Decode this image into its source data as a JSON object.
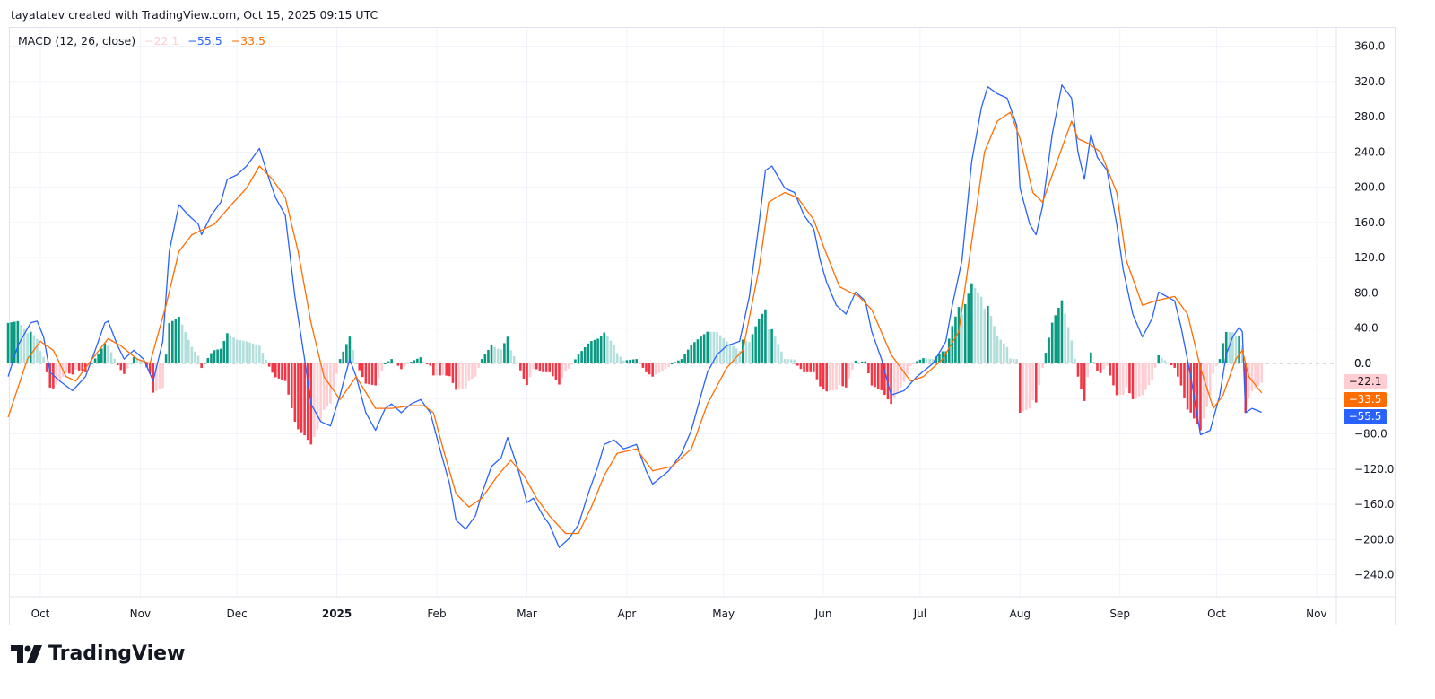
{
  "credit": "tayatatev created with TradingView.com, Oct 15, 2025 09:15 UTC",
  "legend": {
    "indicator": "MACD (12, 26, close)",
    "histogram_value": "−22.1",
    "macd_value": "−55.5",
    "signal_value": "−33.5"
  },
  "price_tags": {
    "histogram": "−22.1",
    "signal": "−33.5",
    "macd": "−55.5",
    "zero": "0.0"
  },
  "logo": "TradingView",
  "colors": {
    "macd": "#2962ff",
    "signal": "#ff6d00",
    "hist_up_strong": "#089981",
    "hist_up_weak": "#b2dfdb",
    "hist_down_strong": "#f23645",
    "hist_down_weak": "#ffcdd2"
  },
  "chart_data": {
    "type": "line",
    "title": "MACD (12, 26, close)",
    "ylim": [
      -260,
      380
    ],
    "yticks": [
      "360.0",
      "320.0",
      "280.0",
      "240.0",
      "200.0",
      "160.0",
      "120.0",
      "80.0",
      "40.0",
      "0.0",
      "-40.0",
      "-80.0",
      "-120.0",
      "-160.0",
      "-200.0",
      "-240.0"
    ],
    "xticks": [
      {
        "label": "Oct",
        "date": "2024-10-01"
      },
      {
        "label": "Nov",
        "date": "2024-11-01"
      },
      {
        "label": "Dec",
        "date": "2024-12-01"
      },
      {
        "label": "2025",
        "date": "2025-01-01",
        "bold": true
      },
      {
        "label": "Feb",
        "date": "2025-02-01"
      },
      {
        "label": "Mar",
        "date": "2025-03-01"
      },
      {
        "label": "Apr",
        "date": "2025-04-01"
      },
      {
        "label": "May",
        "date": "2025-05-01"
      },
      {
        "label": "Jun",
        "date": "2025-06-01"
      },
      {
        "label": "Jul",
        "date": "2025-07-01"
      },
      {
        "label": "Aug",
        "date": "2025-08-01"
      },
      {
        "label": "Sep",
        "date": "2025-09-01"
      },
      {
        "label": "Oct",
        "date": "2025-10-01"
      },
      {
        "label": "Nov",
        "date": "2025-11-01"
      }
    ],
    "grid": true,
    "series": [
      {
        "key": "macd",
        "points": [
          [
            "2024-09-21",
            -15
          ],
          [
            "2024-09-24",
            20
          ],
          [
            "2024-09-28",
            46
          ],
          [
            "2024-09-30",
            48
          ],
          [
            "2024-10-02",
            30
          ],
          [
            "2024-10-04",
            -10
          ],
          [
            "2024-10-07",
            -20
          ],
          [
            "2024-10-11",
            -31
          ],
          [
            "2024-10-15",
            -15
          ],
          [
            "2024-10-18",
            15
          ],
          [
            "2024-10-21",
            46
          ],
          [
            "2024-10-22",
            48
          ],
          [
            "2024-10-25",
            20
          ],
          [
            "2024-10-27",
            5
          ],
          [
            "2024-10-30",
            15
          ],
          [
            "2024-11-02",
            5
          ],
          [
            "2024-11-05",
            -20
          ],
          [
            "2024-11-08",
            25
          ],
          [
            "2024-11-10",
            127
          ],
          [
            "2024-11-13",
            180
          ],
          [
            "2024-11-16",
            168
          ],
          [
            "2024-11-19",
            158
          ],
          [
            "2024-11-20",
            146
          ],
          [
            "2024-11-23",
            168
          ],
          [
            "2024-11-26",
            183
          ],
          [
            "2024-11-28",
            209
          ],
          [
            "2024-12-01",
            214
          ],
          [
            "2024-12-04",
            224
          ],
          [
            "2024-12-06",
            234
          ],
          [
            "2024-12-08",
            244
          ],
          [
            "2024-12-11",
            209
          ],
          [
            "2024-12-13",
            188
          ],
          [
            "2024-12-16",
            168
          ],
          [
            "2024-12-19",
            76
          ],
          [
            "2024-12-22",
            5
          ],
          [
            "2024-12-24",
            -46
          ],
          [
            "2024-12-27",
            -66
          ],
          [
            "2024-12-30",
            -71
          ],
          [
            "2025-01-02",
            -36
          ],
          [
            "2025-01-05",
            5
          ],
          [
            "2025-01-07",
            -15
          ],
          [
            "2025-01-10",
            -56
          ],
          [
            "2025-01-13",
            -76
          ],
          [
            "2025-01-16",
            -51
          ],
          [
            "2025-01-18",
            -46
          ],
          [
            "2025-01-21",
            -56
          ],
          [
            "2025-01-24",
            -46
          ],
          [
            "2025-01-27",
            -41
          ],
          [
            "2025-01-30",
            -56
          ],
          [
            "2025-02-02",
            -97
          ],
          [
            "2025-02-05",
            -137
          ],
          [
            "2025-02-07",
            -178
          ],
          [
            "2025-02-10",
            -188
          ],
          [
            "2025-02-13",
            -173
          ],
          [
            "2025-02-15",
            -148
          ],
          [
            "2025-02-18",
            -117
          ],
          [
            "2025-02-21",
            -107
          ],
          [
            "2025-02-23",
            -84
          ],
          [
            "2025-02-26",
            -117
          ],
          [
            "2025-03-01",
            -158
          ],
          [
            "2025-03-03",
            -153
          ],
          [
            "2025-03-06",
            -173
          ],
          [
            "2025-03-08",
            -183
          ],
          [
            "2025-03-11",
            -209
          ],
          [
            "2025-03-14",
            -199
          ],
          [
            "2025-03-17",
            -183
          ],
          [
            "2025-03-20",
            -148
          ],
          [
            "2025-03-23",
            -117
          ],
          [
            "2025-03-25",
            -92
          ],
          [
            "2025-03-28",
            -87
          ],
          [
            "2025-03-31",
            -97
          ],
          [
            "2025-04-04",
            -92
          ],
          [
            "2025-04-07",
            -122
          ],
          [
            "2025-04-09",
            -137
          ],
          [
            "2025-04-14",
            -122
          ],
          [
            "2025-04-18",
            -102
          ],
          [
            "2025-04-21",
            -76
          ],
          [
            "2025-04-24",
            -36
          ],
          [
            "2025-04-26",
            -10
          ],
          [
            "2025-04-29",
            10
          ],
          [
            "2025-05-02",
            20
          ],
          [
            "2025-05-06",
            25
          ],
          [
            "2025-05-09",
            76
          ],
          [
            "2025-05-12",
            158
          ],
          [
            "2025-05-14",
            219
          ],
          [
            "2025-05-16",
            224
          ],
          [
            "2025-05-20",
            199
          ],
          [
            "2025-05-23",
            194
          ],
          [
            "2025-05-26",
            168
          ],
          [
            "2025-05-29",
            153
          ],
          [
            "2025-05-31",
            117
          ],
          [
            "2025-06-02",
            92
          ],
          [
            "2025-06-05",
            66
          ],
          [
            "2025-06-08",
            56
          ],
          [
            "2025-06-11",
            81
          ],
          [
            "2025-06-14",
            71
          ],
          [
            "2025-06-16",
            36
          ],
          [
            "2025-06-19",
            5
          ],
          [
            "2025-06-22",
            -36
          ],
          [
            "2025-06-26",
            -31
          ],
          [
            "2025-06-30",
            -15
          ],
          [
            "2025-07-05",
            0
          ],
          [
            "2025-07-09",
            25
          ],
          [
            "2025-07-11",
            66
          ],
          [
            "2025-07-14",
            117
          ],
          [
            "2025-07-17",
            229
          ],
          [
            "2025-07-20",
            290
          ],
          [
            "2025-07-22",
            314
          ],
          [
            "2025-07-25",
            306
          ],
          [
            "2025-07-28",
            301
          ],
          [
            "2025-07-31",
            270
          ],
          [
            "2025-08-01",
            199
          ],
          [
            "2025-08-04",
            158
          ],
          [
            "2025-08-06",
            146
          ],
          [
            "2025-08-08",
            178
          ],
          [
            "2025-08-11",
            260
          ],
          [
            "2025-08-14",
            316
          ],
          [
            "2025-08-17",
            301
          ],
          [
            "2025-08-19",
            240
          ],
          [
            "2025-08-21",
            209
          ],
          [
            "2025-08-23",
            260
          ],
          [
            "2025-08-25",
            234
          ],
          [
            "2025-08-28",
            219
          ],
          [
            "2025-08-31",
            158
          ],
          [
            "2025-09-02",
            107
          ],
          [
            "2025-09-05",
            56
          ],
          [
            "2025-09-08",
            30
          ],
          [
            "2025-09-11",
            51
          ],
          [
            "2025-09-13",
            81
          ],
          [
            "2025-09-18",
            71
          ],
          [
            "2025-09-20",
            41
          ],
          [
            "2025-09-23",
            -15
          ],
          [
            "2025-09-26",
            -81
          ],
          [
            "2025-09-29",
            -76
          ],
          [
            "2025-10-02",
            -36
          ],
          [
            "2025-10-04",
            10
          ],
          [
            "2025-10-06",
            30
          ],
          [
            "2025-10-08",
            41
          ],
          [
            "2025-10-09",
            36
          ],
          [
            "2025-10-10",
            -56
          ],
          [
            "2025-10-12",
            -51
          ],
          [
            "2025-10-15",
            -55.5
          ]
        ]
      },
      {
        "key": "signal",
        "points": [
          [
            "2024-09-21",
            -61
          ],
          [
            "2024-09-27",
            5
          ],
          [
            "2024-10-01",
            25
          ],
          [
            "2024-10-05",
            15
          ],
          [
            "2024-10-09",
            -15
          ],
          [
            "2024-10-12",
            -20
          ],
          [
            "2024-10-16",
            0
          ],
          [
            "2024-10-22",
            28
          ],
          [
            "2024-10-26",
            20
          ],
          [
            "2024-10-31",
            5
          ],
          [
            "2024-11-04",
            0
          ],
          [
            "2024-11-09",
            66
          ],
          [
            "2024-11-13",
            127
          ],
          [
            "2024-11-17",
            146
          ],
          [
            "2024-11-24",
            158
          ],
          [
            "2024-11-30",
            183
          ],
          [
            "2024-12-04",
            199
          ],
          [
            "2024-12-08",
            224
          ],
          [
            "2024-12-12",
            209
          ],
          [
            "2024-12-16",
            188
          ],
          [
            "2024-12-20",
            127
          ],
          [
            "2024-12-24",
            46
          ],
          [
            "2024-12-28",
            -15
          ],
          [
            "2025-01-02",
            -41
          ],
          [
            "2025-01-07",
            -15
          ],
          [
            "2025-01-13",
            -51
          ],
          [
            "2025-01-18",
            -51
          ],
          [
            "2025-01-24",
            -48
          ],
          [
            "2025-01-28",
            -48
          ],
          [
            "2025-01-31",
            -56
          ],
          [
            "2025-02-03",
            -97
          ],
          [
            "2025-02-07",
            -148
          ],
          [
            "2025-02-11",
            -163
          ],
          [
            "2025-02-15",
            -153
          ],
          [
            "2025-02-20",
            -127
          ],
          [
            "2025-02-24",
            -110
          ],
          [
            "2025-02-28",
            -127
          ],
          [
            "2025-03-04",
            -153
          ],
          [
            "2025-03-08",
            -173
          ],
          [
            "2025-03-13",
            -193
          ],
          [
            "2025-03-17",
            -193
          ],
          [
            "2025-03-21",
            -163
          ],
          [
            "2025-03-25",
            -127
          ],
          [
            "2025-03-29",
            -102
          ],
          [
            "2025-04-04",
            -97
          ],
          [
            "2025-04-09",
            -122
          ],
          [
            "2025-04-15",
            -117
          ],
          [
            "2025-04-21",
            -97
          ],
          [
            "2025-04-26",
            -46
          ],
          [
            "2025-05-02",
            -5
          ],
          [
            "2025-05-07",
            15
          ],
          [
            "2025-05-12",
            107
          ],
          [
            "2025-05-15",
            183
          ],
          [
            "2025-05-20",
            194
          ],
          [
            "2025-05-24",
            188
          ],
          [
            "2025-05-29",
            163
          ],
          [
            "2025-06-01",
            133
          ],
          [
            "2025-06-06",
            87
          ],
          [
            "2025-06-12",
            76
          ],
          [
            "2025-06-16",
            61
          ],
          [
            "2025-06-22",
            10
          ],
          [
            "2025-06-28",
            -20
          ],
          [
            "2025-07-02",
            -15
          ],
          [
            "2025-07-08",
            5
          ],
          [
            "2025-07-13",
            36
          ],
          [
            "2025-07-17",
            138
          ],
          [
            "2025-07-21",
            240
          ],
          [
            "2025-07-25",
            275
          ],
          [
            "2025-07-29",
            285
          ],
          [
            "2025-08-01",
            255
          ],
          [
            "2025-08-05",
            194
          ],
          [
            "2025-08-08",
            183
          ],
          [
            "2025-08-12",
            224
          ],
          [
            "2025-08-17",
            275
          ],
          [
            "2025-08-19",
            255
          ],
          [
            "2025-08-22",
            250
          ],
          [
            "2025-08-26",
            240
          ],
          [
            "2025-08-31",
            194
          ],
          [
            "2025-09-03",
            117
          ],
          [
            "2025-09-08",
            66
          ],
          [
            "2025-09-12",
            71
          ],
          [
            "2025-09-18",
            76
          ],
          [
            "2025-09-22",
            56
          ],
          [
            "2025-09-26",
            -5
          ],
          [
            "2025-09-30",
            -51
          ],
          [
            "2025-10-03",
            -36
          ],
          [
            "2025-10-07",
            5
          ],
          [
            "2025-10-09",
            15
          ],
          [
            "2025-10-11",
            -15
          ],
          [
            "2025-10-15",
            -33.5
          ]
        ]
      }
    ]
  }
}
